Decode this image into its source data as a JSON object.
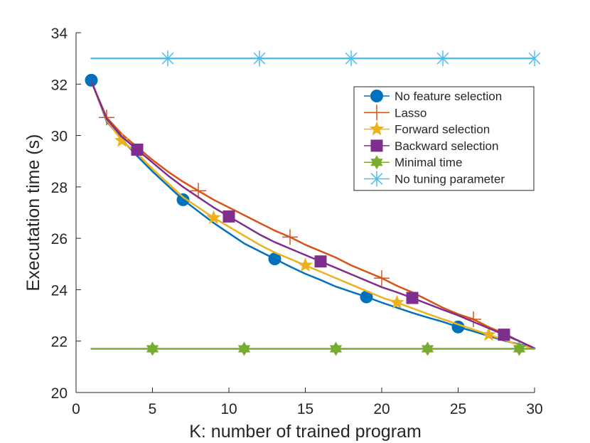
{
  "chart_data": {
    "type": "line",
    "title": "",
    "xlabel": "K: number of trained program",
    "ylabel": "Executation time (s)",
    "xlim": [
      0,
      30
    ],
    "ylim": [
      20,
      34
    ],
    "xticks": [
      0,
      5,
      10,
      15,
      20,
      25,
      30
    ],
    "yticks": [
      20,
      22,
      24,
      26,
      28,
      30,
      32,
      34
    ],
    "grid": false,
    "legend_position": "top-right",
    "series": [
      {
        "name": "No feature selection",
        "color": "#0072BD",
        "marker": "circle",
        "x": [
          1,
          2,
          3,
          4,
          5,
          6,
          7,
          8,
          9,
          10,
          11,
          12,
          13,
          14,
          15,
          16,
          17,
          18,
          19,
          20,
          21,
          22,
          23,
          24,
          25,
          26,
          27,
          28,
          29,
          30
        ],
        "y": [
          32.15,
          30.55,
          29.85,
          29.2,
          28.6,
          28.05,
          27.5,
          27.05,
          26.6,
          26.2,
          25.8,
          25.5,
          25.2,
          24.9,
          24.62,
          24.38,
          24.12,
          23.92,
          23.72,
          23.5,
          23.3,
          23.1,
          22.92,
          22.75,
          22.55,
          22.38,
          22.2,
          22.02,
          21.88,
          21.72
        ],
        "marker_x": [
          1,
          7,
          13,
          19,
          25
        ]
      },
      {
        "name": "Lasso",
        "color": "#D95319",
        "marker": "plus",
        "x": [
          1,
          2,
          3,
          4,
          5,
          6,
          7,
          8,
          9,
          10,
          11,
          12,
          13,
          14,
          15,
          16,
          17,
          18,
          19,
          20,
          21,
          22,
          23,
          24,
          25,
          26,
          27,
          28,
          29,
          30
        ],
        "y": [
          32.1,
          30.7,
          30.05,
          29.55,
          29.05,
          28.6,
          28.2,
          27.85,
          27.5,
          27.2,
          26.9,
          26.6,
          26.3,
          26.05,
          25.75,
          25.5,
          25.25,
          24.95,
          24.7,
          24.45,
          24.15,
          23.9,
          23.6,
          23.3,
          23.05,
          22.85,
          22.55,
          22.3,
          22.0,
          21.72
        ],
        "marker_x": [
          2,
          8,
          14,
          20,
          26
        ]
      },
      {
        "name": "Forward selection",
        "color": "#EDB120",
        "marker": "star",
        "x": [
          1,
          2,
          3,
          4,
          5,
          6,
          7,
          8,
          9,
          10,
          11,
          12,
          13,
          14,
          15,
          16,
          17,
          18,
          19,
          20,
          21,
          22,
          23,
          24,
          25,
          26,
          27,
          28,
          29,
          30
        ],
        "y": [
          32.1,
          30.6,
          29.8,
          29.3,
          28.7,
          28.15,
          27.6,
          27.2,
          26.8,
          26.45,
          26.1,
          25.75,
          25.45,
          25.2,
          24.95,
          24.7,
          24.45,
          24.2,
          23.95,
          23.7,
          23.5,
          23.28,
          23.06,
          22.85,
          22.65,
          22.45,
          22.25,
          22.05,
          21.85,
          21.72
        ],
        "marker_x": [
          3,
          9,
          15,
          21,
          27
        ]
      },
      {
        "name": "Backward selection",
        "color": "#7E2F8E",
        "marker": "square",
        "x": [
          1,
          2,
          3,
          4,
          5,
          6,
          7,
          8,
          9,
          10,
          11,
          12,
          13,
          14,
          15,
          16,
          17,
          18,
          19,
          20,
          21,
          22,
          23,
          24,
          25,
          26,
          27,
          28,
          29,
          30
        ],
        "y": [
          32.1,
          30.65,
          29.95,
          29.45,
          28.95,
          28.45,
          28.0,
          27.6,
          27.2,
          26.85,
          26.5,
          26.15,
          25.85,
          25.6,
          25.35,
          25.1,
          24.85,
          24.6,
          24.35,
          24.1,
          23.9,
          23.68,
          23.45,
          23.22,
          23.0,
          22.75,
          22.5,
          22.25,
          22.0,
          21.72
        ],
        "marker_x": [
          4,
          10,
          16,
          22,
          28
        ]
      },
      {
        "name": "Minimal time",
        "color": "#77AC30",
        "marker": "hexagram",
        "x": [
          1,
          30
        ],
        "y": [
          21.7,
          21.7
        ],
        "marker_x": [
          5,
          11,
          17,
          23,
          29
        ]
      },
      {
        "name": "No tuning parameter",
        "color": "#4DBEEE",
        "marker": "asterisk",
        "x": [
          1,
          30
        ],
        "y": [
          33.0,
          33.0
        ],
        "marker_x": [
          6,
          12,
          18,
          24,
          30
        ]
      }
    ]
  }
}
